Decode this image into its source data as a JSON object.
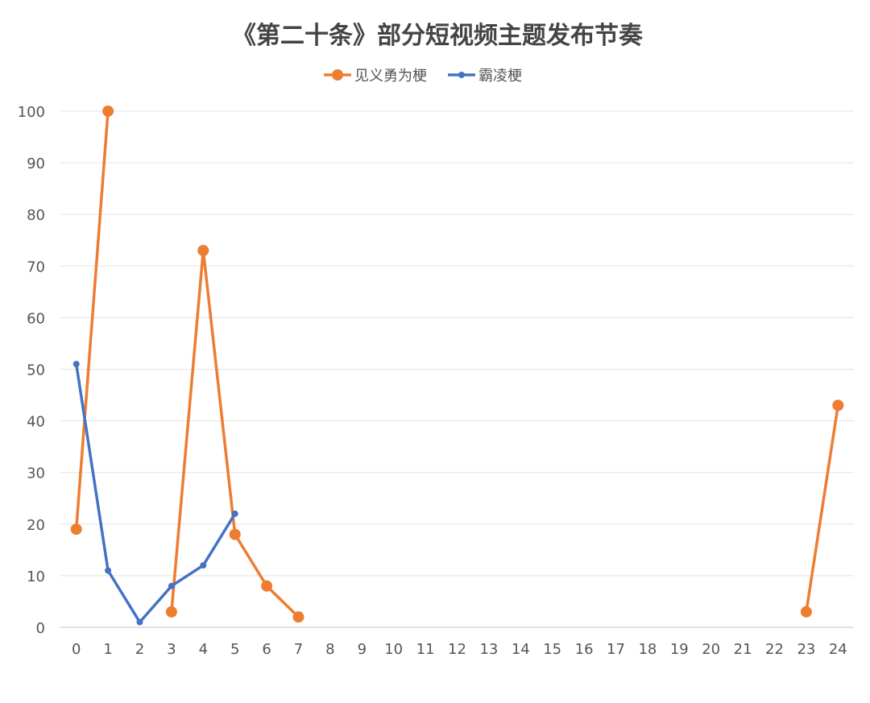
{
  "chart_data": {
    "type": "line",
    "title": "《第二十条》部分短视频主题发布节奏",
    "x": [
      0,
      1,
      2,
      3,
      4,
      5,
      6,
      7,
      8,
      9,
      10,
      11,
      12,
      13,
      14,
      15,
      16,
      17,
      18,
      19,
      20,
      21,
      22,
      23,
      24
    ],
    "ylim": [
      0,
      100
    ],
    "yticks": [
      0,
      10,
      20,
      30,
      40,
      50,
      60,
      70,
      80,
      90,
      100
    ],
    "grid": true,
    "legend_position": "top-center",
    "series": [
      {
        "name": "见义勇为梗",
        "color": "#ED7D31",
        "segments": [
          [
            [
              0,
              19
            ],
            [
              1,
              100
            ]
          ],
          [
            [
              3,
              3
            ],
            [
              4,
              73
            ],
            [
              5,
              18
            ],
            [
              6,
              8
            ],
            [
              7,
              2
            ]
          ],
          [
            [
              23,
              3
            ],
            [
              24,
              43
            ]
          ]
        ]
      },
      {
        "name": "霸凌梗",
        "color": "#4472C4",
        "segments": [
          [
            [
              0,
              51
            ],
            [
              1,
              11
            ],
            [
              2,
              1
            ],
            [
              3,
              8
            ],
            [
              4,
              12
            ],
            [
              5,
              22
            ]
          ]
        ]
      }
    ]
  }
}
